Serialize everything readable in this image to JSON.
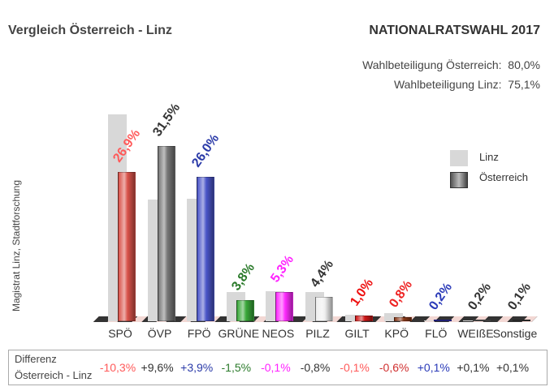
{
  "header": {
    "title_left": "Vergleich Österreich - Linz",
    "title_right": "NATIONALRATSWAHL 2017",
    "turnout_austria_label": "Wahlbeteiligung Österreich:",
    "turnout_austria_value": "80,0%",
    "turnout_linz_label": "Wahlbeteiligung Linz:",
    "turnout_linz_value": "75,1%"
  },
  "source": "Magistrat Linz, Stadtforschung",
  "legend": {
    "linz": "Linz",
    "austria": "Österreich"
  },
  "diff": {
    "label_line1": "Differenz",
    "label_line2": "Österreich - Linz",
    "values": [
      "-10,3%",
      "+9,6%",
      "+3,9%",
      "-1,5%",
      "-0,1%",
      "-0,8%",
      "-0,1%",
      "-0,6%",
      "+0,1%",
      "+0,1%",
      "+0,1%"
    ]
  },
  "chart_data": {
    "type": "bar",
    "title": "Vergleich Österreich - Linz — NATIONALRATSWAHL 2017",
    "categories": [
      "SPÖ",
      "ÖVP",
      "FPÖ",
      "GRÜNE",
      "NEOS",
      "PILZ",
      "GILT",
      "KPÖ",
      "FLÖ",
      "WEIßE",
      "Sonstige"
    ],
    "series": [
      {
        "name": "Linz",
        "values": [
          37.2,
          21.9,
          22.1,
          5.3,
          5.4,
          5.2,
          1.1,
          1.4,
          0.1,
          0.1,
          0.0
        ]
      },
      {
        "name": "Österreich",
        "values": [
          26.9,
          31.5,
          26.0,
          3.8,
          5.3,
          4.4,
          1.0,
          0.8,
          0.2,
          0.2,
          0.1
        ]
      }
    ],
    "value_labels": [
      "26,9%",
      "31,5%",
      "26,0%",
      "3,8%",
      "5,3%",
      "4,4%",
      "1,0%",
      "0,8%",
      "0,2%",
      "0,2%",
      "0,1%"
    ],
    "differences": [
      "-10,3%",
      "+9,6%",
      "+3,9%",
      "-1,5%",
      "-0,1%",
      "-0,8%",
      "-0,1%",
      "-0,6%",
      "+0,1%",
      "+0,1%",
      "+0,1%"
    ],
    "colors": [
      "#d9534a",
      "#777777",
      "#4a55c8",
      "#3aa83a",
      "#ff2aff",
      "#eeeeee",
      "#d01818",
      "#8b3a1a",
      "#2a2a9a",
      "#555555",
      "#333333"
    ],
    "label_colors": [
      "#ff5a5a",
      "#333333",
      "#2a3aa8",
      "#2a7a2a",
      "#ff22ff",
      "#333333",
      "#ee1111",
      "#ee2222",
      "#2a3ab8",
      "#333333",
      "#333333"
    ],
    "diff_colors": [
      "#ff5a5a",
      "#333333",
      "#2a3aa8",
      "#2a7a2a",
      "#ff22ff",
      "#333333",
      "#ff5a5a",
      "#d03030",
      "#2a3ab8",
      "#333333",
      "#333333"
    ],
    "xlabel": "",
    "ylabel": "",
    "ylim": [
      0,
      38
    ],
    "grid": false,
    "legend_position": "right"
  }
}
